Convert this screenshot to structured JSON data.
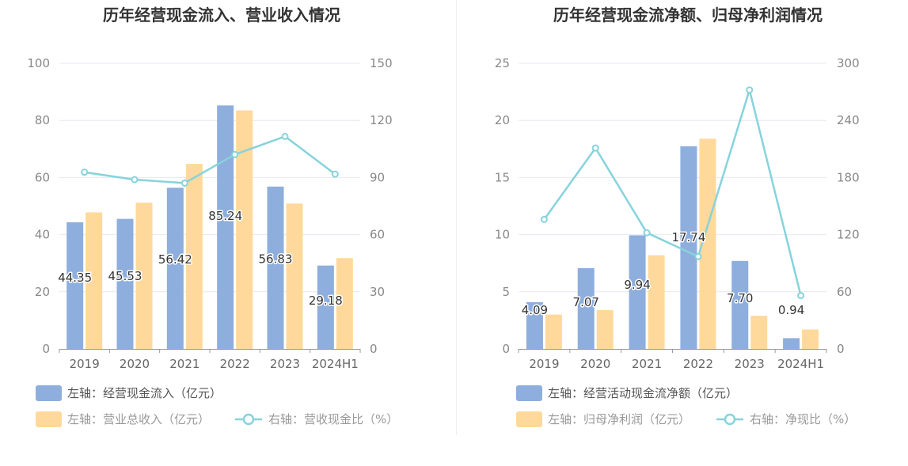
{
  "colors": {
    "bar_primary": "#8eaedd",
    "bar_secondary": "#fed99b",
    "line": "#87d3dc",
    "grid": "#e6e8ef",
    "axis": "#999999"
  },
  "chart_data": [
    {
      "type": "bar",
      "title": "历年经营现金流入、营业收入情况",
      "categories": [
        "2019",
        "2020",
        "2021",
        "2022",
        "2023",
        "2024H1"
      ],
      "left_axis": {
        "ylim": [
          0,
          100
        ],
        "ticks": [
          "0",
          "20",
          "40",
          "60",
          "80",
          "100"
        ]
      },
      "right_axis": {
        "ylim": [
          0,
          150
        ],
        "ticks": [
          "0",
          "30",
          "60",
          "90",
          "120",
          "150"
        ]
      },
      "series": [
        {
          "name": "左轴：经营现金流入（亿元）",
          "type": "bar",
          "axis": "left",
          "values": [
            44.35,
            45.53,
            56.42,
            85.24,
            56.83,
            29.18
          ],
          "labels": [
            "44.35",
            "45.53",
            "56.42",
            "85.24",
            "56.83",
            "29.18"
          ]
        },
        {
          "name": "左轴：营业总收入（亿元）",
          "type": "bar",
          "axis": "left",
          "values": [
            47.8,
            51.2,
            64.8,
            83.5,
            50.9,
            31.8
          ]
        },
        {
          "name": "右轴：营收现金比（%）",
          "type": "line",
          "axis": "right",
          "values": [
            92.8,
            88.9,
            87.1,
            102.1,
            111.6,
            91.8
          ]
        }
      ]
    },
    {
      "type": "bar",
      "title": "历年经营现金流净额、归母净利润情况",
      "categories": [
        "2019",
        "2020",
        "2021",
        "2022",
        "2023",
        "2024H1"
      ],
      "left_axis": {
        "ylim": [
          0,
          25
        ],
        "ticks": [
          "0",
          "5",
          "10",
          "15",
          "20",
          "25"
        ]
      },
      "right_axis": {
        "ylim": [
          0,
          300
        ],
        "ticks": [
          "0",
          "60",
          "120",
          "180",
          "240",
          "300"
        ]
      },
      "series": [
        {
          "name": "左轴：经营活动现金流净额（亿元）",
          "type": "bar",
          "axis": "left",
          "values": [
            4.09,
            7.07,
            9.94,
            17.74,
            7.7,
            0.94
          ],
          "labels": [
            "4.09",
            "7.07",
            "9.94",
            "17.74",
            "7.70",
            "0.94"
          ]
        },
        {
          "name": "左轴：归母净利润（亿元）",
          "type": "bar",
          "axis": "left",
          "values": [
            3.0,
            3.4,
            8.2,
            18.4,
            2.9,
            1.7
          ]
        },
        {
          "name": "右轴：净现比（%）",
          "type": "line",
          "axis": "right",
          "values": [
            136,
            211,
            122,
            97,
            272,
            56
          ]
        }
      ]
    }
  ]
}
